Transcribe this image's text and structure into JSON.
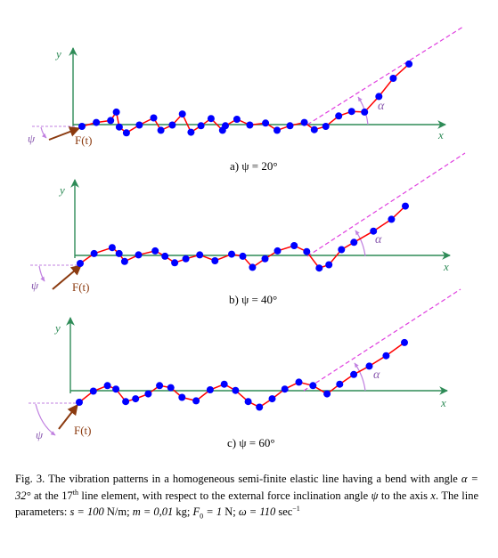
{
  "panels": [
    {
      "y_label": "y",
      "x_label": "x",
      "force_label": "F(t)",
      "psi_label": "ψ",
      "alpha_label": "α",
      "subcaption": "a) ψ = 20°",
      "psi_deg": 20
    },
    {
      "y_label": "y",
      "x_label": "x",
      "force_label": "F(t)",
      "psi_label": "ψ",
      "alpha_label": "α",
      "subcaption": "b) ψ = 40°",
      "psi_deg": 40
    },
    {
      "y_label": "y",
      "x_label": "x",
      "force_label": "F(t)",
      "psi_label": "ψ",
      "alpha_label": "α",
      "subcaption": "c) ψ = 60°",
      "psi_deg": 60
    }
  ],
  "caption": {
    "p1": "Fig. 3. The vibration patterns in a homogeneous semi-finite elastic line having a bend with angle ",
    "alpha_eq": "α = 32°",
    "p2": " at the 17",
    "th": "th",
    "p3": " line element, with respect to the external force inclination angle ",
    "psi": "ψ",
    "p4": " to the axis ",
    "x": "x",
    "p5": ". The line parameters: ",
    "s_eq": "s = 100",
    "p6": " N/m; ",
    "m_eq": "m = 0,01",
    "p7": " kg; ",
    "f0": "F",
    "f0_sub": "0",
    "f0_eq": " = 1",
    "p8": " N; ",
    "omega_eq": "ω = 110",
    "p9": " sec",
    "sup": "−1"
  },
  "colors": {
    "axis": "#2e8b57",
    "line": "#ff0000",
    "node": "#0000ff",
    "force": "#8b3a0f",
    "guide": "#c080e0",
    "extension": "#e040e0"
  },
  "chart_data": [
    {
      "type": "scatter",
      "title": "a) ψ = 20°",
      "nodes": [
        [
          0,
          0
        ],
        [
          1,
          0.6
        ],
        [
          2,
          0.9
        ],
        [
          2.4,
          2.2
        ],
        [
          2.6,
          -0.1
        ],
        [
          3.1,
          -1
        ],
        [
          4,
          0.2
        ],
        [
          5,
          1.3
        ],
        [
          5.5,
          -0.6
        ],
        [
          6.3,
          0.2
        ],
        [
          7,
          1.9
        ],
        [
          7.6,
          -0.9
        ],
        [
          8.3,
          0.1
        ],
        [
          9,
          1.2
        ],
        [
          9.8,
          -0.6
        ],
        [
          10,
          0.1
        ],
        [
          10.8,
          1.1
        ],
        [
          11.7,
          0.2
        ],
        [
          12.8,
          0.5
        ],
        [
          13.6,
          -0.6
        ],
        [
          14.5,
          0.1
        ],
        [
          15.5,
          0.6
        ],
        [
          16.2,
          -0.5
        ],
        [
          17,
          0
        ],
        [
          17.9,
          1.6
        ],
        [
          18.8,
          2.3
        ],
        [
          19.7,
          2.2
        ],
        [
          20.7,
          4.6
        ],
        [
          21.7,
          7.4
        ],
        [
          22.8,
          9.6
        ]
      ],
      "note": "x along line element index; y transverse displacement, units not printed"
    },
    {
      "type": "scatter",
      "title": "b) ψ = 40°",
      "nodes": [
        [
          0,
          0
        ],
        [
          1,
          1.5
        ],
        [
          2.3,
          2.4
        ],
        [
          2.8,
          1.5
        ],
        [
          3.2,
          0.3
        ],
        [
          4.2,
          1.3
        ],
        [
          5.4,
          1.9
        ],
        [
          6.1,
          1.1
        ],
        [
          6.8,
          0.1
        ],
        [
          7.6,
          0.7
        ],
        [
          8.6,
          1.3
        ],
        [
          9.7,
          0.4
        ],
        [
          10.9,
          1.4
        ],
        [
          11.7,
          1.1
        ],
        [
          12.4,
          -0.6
        ],
        [
          13.3,
          0.7
        ],
        [
          14.2,
          1.9
        ],
        [
          15.4,
          2.7
        ],
        [
          16.3,
          1.8
        ],
        [
          17.2,
          -0.7
        ],
        [
          17.9,
          -0.2
        ],
        [
          18.8,
          2.1
        ],
        [
          19.7,
          3.2
        ],
        [
          21.1,
          4.9
        ],
        [
          22.4,
          6.7
        ],
        [
          23.4,
          8.7
        ]
      ]
    },
    {
      "type": "scatter",
      "title": "c) ψ = 60°",
      "nodes": [
        [
          0,
          0
        ],
        [
          1,
          1.6
        ],
        [
          2,
          2.4
        ],
        [
          2.6,
          1.9
        ],
        [
          3.3,
          0.1
        ],
        [
          4,
          0.5
        ],
        [
          4.9,
          1.2
        ],
        [
          5.7,
          2.4
        ],
        [
          6.5,
          2.1
        ],
        [
          7.3,
          0.7
        ],
        [
          8.3,
          0.2
        ],
        [
          9.3,
          1.8
        ],
        [
          10.3,
          2.6
        ],
        [
          11.1,
          1.7
        ],
        [
          12,
          0.1
        ],
        [
          12.8,
          -0.7
        ],
        [
          13.7,
          0.5
        ],
        [
          14.6,
          1.9
        ],
        [
          15.6,
          2.9
        ],
        [
          16.6,
          2.4
        ],
        [
          17.6,
          1.2
        ],
        [
          18.5,
          2.6
        ],
        [
          19.5,
          4
        ],
        [
          20.6,
          5.2
        ],
        [
          21.8,
          6.7
        ],
        [
          23.1,
          8.6
        ]
      ]
    }
  ]
}
